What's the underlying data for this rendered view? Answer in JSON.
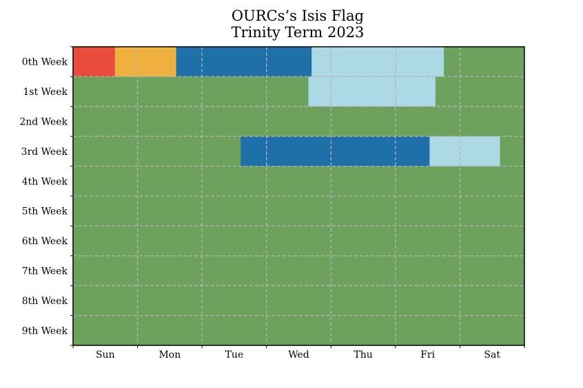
{
  "chart_data": {
    "type": "heatmap",
    "title": "OURCs’s Isis Flag",
    "subtitle": "Trinity Term 2023",
    "xlabel": "",
    "ylabel": "",
    "x_categories": [
      "Sun",
      "Mon",
      "Tue",
      "Wed",
      "Thu",
      "Fri",
      "Sat"
    ],
    "y_categories": [
      "0th Week",
      "1st Week",
      "2nd Week",
      "3rd Week",
      "4th Week",
      "5th Week",
      "6th Week",
      "7th Week",
      "8th Week",
      "9th Week"
    ],
    "grid": true,
    "colors": {
      "green": "#6ca25d",
      "light_blue": "#add8e6",
      "blue": "#1f70a8",
      "amber": "#f0b040",
      "red": "#e84c3d",
      "grid": "#b4b4b4",
      "frame": "#000000"
    },
    "segments": [
      {
        "week": 0,
        "start_day": 0.0,
        "end_day": 0.65,
        "color": "red"
      },
      {
        "week": 0,
        "start_day": 0.65,
        "end_day": 1.6,
        "color": "amber"
      },
      {
        "week": 0,
        "start_day": 1.6,
        "end_day": 3.7,
        "color": "blue"
      },
      {
        "week": 0,
        "start_day": 3.7,
        "end_day": 5.75,
        "color": "light_blue"
      },
      {
        "week": 1,
        "start_day": 3.65,
        "end_day": 5.62,
        "color": "light_blue"
      },
      {
        "week": 3,
        "start_day": 2.6,
        "end_day": 5.53,
        "color": "blue"
      },
      {
        "week": 3,
        "start_day": 5.53,
        "end_day": 6.62,
        "color": "light_blue"
      }
    ]
  }
}
